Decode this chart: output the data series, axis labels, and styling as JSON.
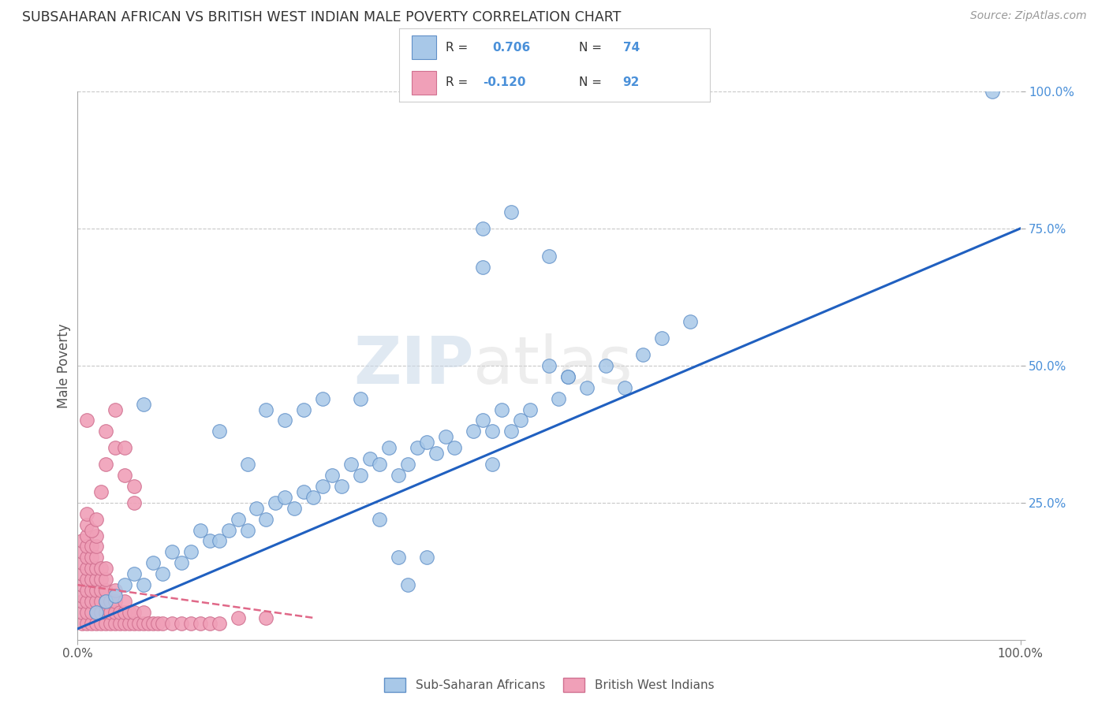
{
  "title": "SUBSAHARAN AFRICAN VS BRITISH WEST INDIAN MALE POVERTY CORRELATION CHART",
  "source": "Source: ZipAtlas.com",
  "ylabel": "Male Poverty",
  "xlim": [
    0,
    1
  ],
  "ylim": [
    0,
    1
  ],
  "blue_color": "#a8c8e8",
  "pink_color": "#f0a0b8",
  "blue_line_color": "#2060c0",
  "pink_line_color": "#e06888",
  "R_blue": 0.706,
  "N_blue": 74,
  "R_pink": -0.12,
  "N_pink": 92,
  "background_color": "#ffffff",
  "grid_color": "#c8c8c8",
  "title_color": "#333333",
  "legend_label_blue": "Sub-Saharan Africans",
  "legend_label_pink": "British West Indians",
  "blue_line_x0": 0.0,
  "blue_line_y0": 0.02,
  "blue_line_x1": 1.0,
  "blue_line_y1": 0.75,
  "pink_line_x0": 0.0,
  "pink_line_y0": 0.1,
  "pink_line_x1": 0.25,
  "pink_line_y1": 0.04,
  "blue_points_x": [
    0.02,
    0.03,
    0.04,
    0.05,
    0.06,
    0.07,
    0.08,
    0.09,
    0.1,
    0.11,
    0.12,
    0.13,
    0.14,
    0.15,
    0.16,
    0.17,
    0.18,
    0.19,
    0.2,
    0.21,
    0.22,
    0.23,
    0.24,
    0.25,
    0.26,
    0.27,
    0.28,
    0.29,
    0.3,
    0.31,
    0.32,
    0.33,
    0.34,
    0.35,
    0.36,
    0.37,
    0.38,
    0.39,
    0.4,
    0.42,
    0.43,
    0.44,
    0.45,
    0.46,
    0.47,
    0.48,
    0.5,
    0.51,
    0.52,
    0.54,
    0.56,
    0.58,
    0.6,
    0.62,
    0.65,
    0.97,
    0.43,
    0.46,
    0.5,
    0.52,
    0.43,
    0.44,
    0.3,
    0.32,
    0.34,
    0.22,
    0.24,
    0.26,
    0.35,
    0.37,
    0.15,
    0.18,
    0.2,
    0.07
  ],
  "blue_points_y": [
    0.05,
    0.07,
    0.08,
    0.1,
    0.12,
    0.1,
    0.14,
    0.12,
    0.16,
    0.14,
    0.16,
    0.2,
    0.18,
    0.18,
    0.2,
    0.22,
    0.2,
    0.24,
    0.22,
    0.25,
    0.26,
    0.24,
    0.27,
    0.26,
    0.28,
    0.3,
    0.28,
    0.32,
    0.3,
    0.33,
    0.32,
    0.35,
    0.3,
    0.32,
    0.35,
    0.36,
    0.34,
    0.37,
    0.35,
    0.38,
    0.4,
    0.38,
    0.42,
    0.38,
    0.4,
    0.42,
    0.5,
    0.44,
    0.48,
    0.46,
    0.5,
    0.46,
    0.52,
    0.55,
    0.58,
    1.0,
    0.75,
    0.78,
    0.7,
    0.48,
    0.68,
    0.32,
    0.44,
    0.22,
    0.15,
    0.4,
    0.42,
    0.44,
    0.1,
    0.15,
    0.38,
    0.32,
    0.42,
    0.43
  ],
  "pink_points_x": [
    0.005,
    0.005,
    0.005,
    0.005,
    0.005,
    0.005,
    0.005,
    0.005,
    0.005,
    0.01,
    0.01,
    0.01,
    0.01,
    0.01,
    0.01,
    0.01,
    0.01,
    0.01,
    0.01,
    0.01,
    0.015,
    0.015,
    0.015,
    0.015,
    0.015,
    0.015,
    0.015,
    0.015,
    0.02,
    0.02,
    0.02,
    0.02,
    0.02,
    0.02,
    0.02,
    0.02,
    0.02,
    0.025,
    0.025,
    0.025,
    0.025,
    0.025,
    0.025,
    0.03,
    0.03,
    0.03,
    0.03,
    0.03,
    0.03,
    0.035,
    0.035,
    0.035,
    0.04,
    0.04,
    0.04,
    0.04,
    0.045,
    0.045,
    0.05,
    0.05,
    0.05,
    0.055,
    0.055,
    0.06,
    0.06,
    0.065,
    0.07,
    0.07,
    0.075,
    0.08,
    0.085,
    0.09,
    0.1,
    0.11,
    0.12,
    0.13,
    0.14,
    0.15,
    0.17,
    0.2,
    0.05,
    0.06,
    0.04,
    0.03,
    0.025,
    0.015,
    0.01,
    0.02,
    0.03,
    0.04,
    0.05,
    0.06
  ],
  "pink_points_y": [
    0.03,
    0.05,
    0.07,
    0.08,
    0.1,
    0.12,
    0.14,
    0.16,
    0.18,
    0.03,
    0.05,
    0.07,
    0.09,
    0.11,
    0.13,
    0.15,
    0.17,
    0.19,
    0.21,
    0.23,
    0.03,
    0.05,
    0.07,
    0.09,
    0.11,
    0.13,
    0.15,
    0.17,
    0.03,
    0.05,
    0.07,
    0.09,
    0.11,
    0.13,
    0.15,
    0.17,
    0.19,
    0.03,
    0.05,
    0.07,
    0.09,
    0.11,
    0.13,
    0.03,
    0.05,
    0.07,
    0.09,
    0.11,
    0.13,
    0.03,
    0.05,
    0.07,
    0.03,
    0.05,
    0.07,
    0.09,
    0.03,
    0.05,
    0.03,
    0.05,
    0.07,
    0.03,
    0.05,
    0.03,
    0.05,
    0.03,
    0.03,
    0.05,
    0.03,
    0.03,
    0.03,
    0.03,
    0.03,
    0.03,
    0.03,
    0.03,
    0.03,
    0.03,
    0.04,
    0.04,
    0.3,
    0.25,
    0.35,
    0.38,
    0.27,
    0.2,
    0.4,
    0.22,
    0.32,
    0.42,
    0.35,
    0.28
  ]
}
